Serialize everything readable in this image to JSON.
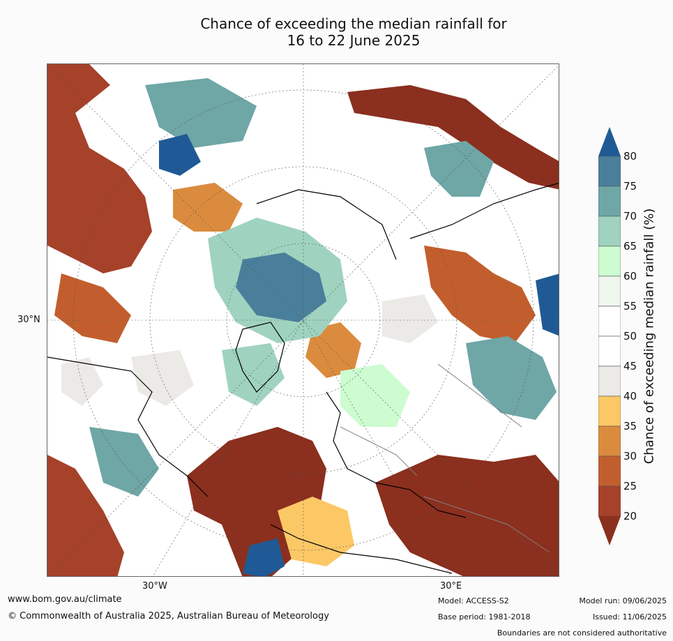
{
  "title": {
    "line1": "Chance of exceeding the median rainfall for",
    "line2": "16 to 22 June 2025"
  },
  "axis_labels": {
    "lat_30n": "30°N",
    "lon_30w": "30°W",
    "lon_30e": "30°E"
  },
  "colorbar": {
    "label": "Chance of exceeding median rainfall (%)",
    "ticks": [
      "80",
      "75",
      "70",
      "65",
      "60",
      "55",
      "50",
      "45",
      "40",
      "35",
      "30",
      "25",
      "20"
    ],
    "colors": [
      "#1f5a96",
      "#4a7f9c",
      "#6fa6a6",
      "#9fd3bf",
      "#cdfcd0",
      "#eef6ee",
      "#ffffff",
      "#ffffff",
      "#eceae6",
      "#fcc866",
      "#db8b3e",
      "#c25e2d",
      "#a6412a",
      "#8b2f1e"
    ],
    "over_color": "#1f5a96",
    "under_color": "#8b2f1e"
  },
  "footer": {
    "url": "www.bom.gov.au/climate",
    "copyright": "© Commonwealth of Australia 2025, Australian Bureau of Meteorology",
    "model": "Model: ACCESS-S2",
    "base_period": "Base period: 1981-2018",
    "model_run": "Model run: 09/06/2025",
    "issued": "Issued: 11/06/2025",
    "disclaimer": "Boundaries are not considered authoritative"
  }
}
